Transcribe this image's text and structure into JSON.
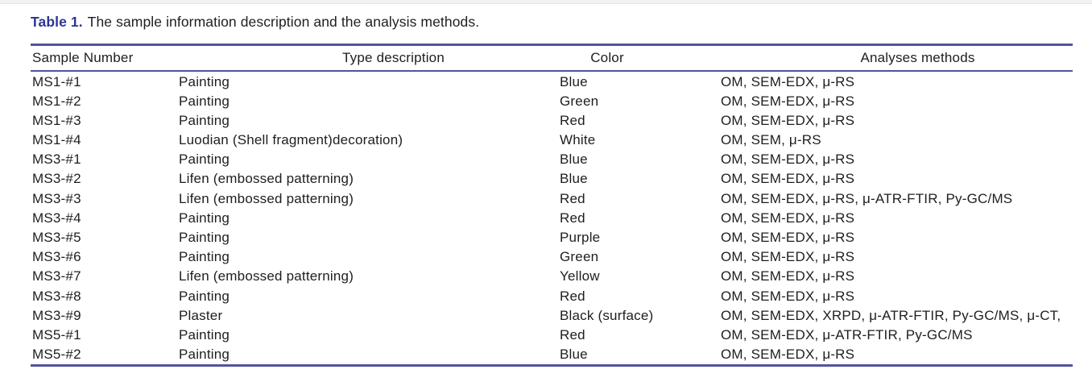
{
  "theme": {
    "accent": "#2e3693",
    "rule": "#53539e",
    "text": "#1e1e1e",
    "strip": "#f2f2f3",
    "bg": "#ffffff"
  },
  "caption": {
    "label": "Table 1.",
    "text": "The sample information description and the analysis methods."
  },
  "table": {
    "columns": [
      "Sample Number",
      "Type description",
      "Color",
      "Analyses methods"
    ],
    "rows": [
      {
        "sample": "MS1-#1",
        "type": "Painting",
        "color": "Blue",
        "methods": "OM, SEM-EDX, μ-RS"
      },
      {
        "sample": "MS1-#2",
        "type": "Painting",
        "color": "Green",
        "methods": "OM, SEM-EDX, μ-RS"
      },
      {
        "sample": "MS1-#3",
        "type": "Painting",
        "color": "Red",
        "methods": "OM, SEM-EDX, μ-RS"
      },
      {
        "sample": "MS1-#4",
        "type": "Luodian (Shell fragment)decoration)",
        "color": "White",
        "methods": "OM, SEM, μ-RS"
      },
      {
        "sample": "MS3-#1",
        "type": "Painting",
        "color": "Blue",
        "methods": "OM, SEM-EDX, μ-RS"
      },
      {
        "sample": "MS3-#2",
        "type": "Lifen (embossed patterning)",
        "color": "Blue",
        "methods": "OM, SEM-EDX, μ-RS"
      },
      {
        "sample": "MS3-#3",
        "type": "Lifen (embossed patterning)",
        "color": "Red",
        "methods": "OM, SEM-EDX, μ-RS, μ-ATR-FTIR, Py-GC/MS"
      },
      {
        "sample": "MS3-#4",
        "type": "Painting",
        "color": "Red",
        "methods": "OM, SEM-EDX, μ-RS"
      },
      {
        "sample": "MS3-#5",
        "type": "Painting",
        "color": "Purple",
        "methods": "OM, SEM-EDX, μ-RS"
      },
      {
        "sample": "MS3-#6",
        "type": "Painting",
        "color": "Green",
        "methods": "OM, SEM-EDX, μ-RS"
      },
      {
        "sample": "MS3-#7",
        "type": "Lifen (embossed patterning)",
        "color": "Yellow",
        "methods": "OM, SEM-EDX, μ-RS"
      },
      {
        "sample": "MS3-#8",
        "type": "Painting",
        "color": "Red",
        "methods": "OM, SEM-EDX, μ-RS"
      },
      {
        "sample": "MS3-#9",
        "type": "Plaster",
        "color": "Black (surface)",
        "methods": "OM, SEM-EDX, XRPD, μ-ATR-FTIR, Py-GC/MS, μ-CT,"
      },
      {
        "sample": "MS5-#1",
        "type": "Painting",
        "color": "Red",
        "methods": "OM, SEM-EDX, μ-ATR-FTIR, Py-GC/MS"
      },
      {
        "sample": "MS5-#2",
        "type": "Painting",
        "color": "Blue",
        "methods": "OM, SEM-EDX, μ-RS"
      }
    ]
  }
}
